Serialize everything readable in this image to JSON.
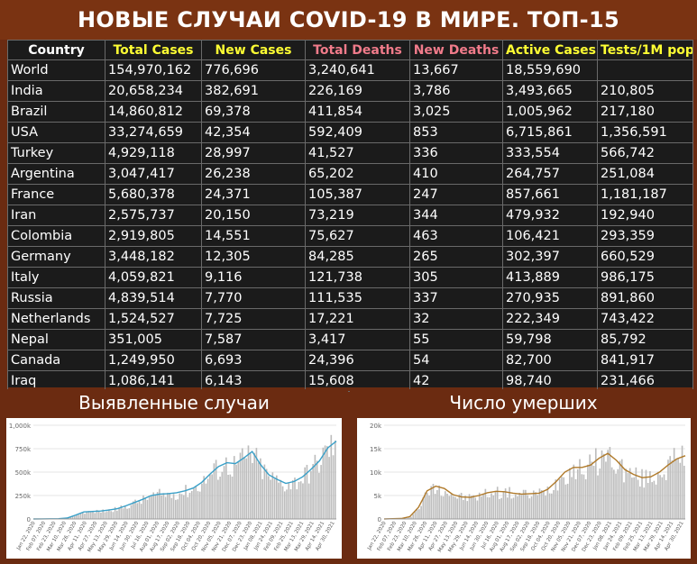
{
  "header": {
    "title": "НОВЫЕ СЛУЧАИ COVID-19 В МИРЕ. ТОП-15"
  },
  "table": {
    "columns": [
      "Country",
      "Total Cases",
      "New Cases",
      "Total Deaths",
      "New Deaths",
      "Active Cases",
      "Tests/1M pop"
    ],
    "rows": [
      [
        "World",
        "154,970,162",
        "776,696",
        "3,240,641",
        "13,667",
        "18,559,690",
        ""
      ],
      [
        "India",
        "20,658,234",
        "382,691",
        "226,169",
        "3,786",
        "3,493,665",
        "210,805"
      ],
      [
        "Brazil",
        "14,860,812",
        "69,378",
        "411,854",
        "3,025",
        "1,005,962",
        "217,180"
      ],
      [
        "USA",
        "33,274,659",
        "42,354",
        "592,409",
        "853",
        "6,715,861",
        "1,356,591"
      ],
      [
        "Turkey",
        "4,929,118",
        "28,997",
        "41,527",
        "336",
        "333,554",
        "566,742"
      ],
      [
        "Argentina",
        "3,047,417",
        "26,238",
        "65,202",
        "410",
        "264,757",
        "251,084"
      ],
      [
        "France",
        "5,680,378",
        "24,371",
        "105,387",
        "247",
        "857,661",
        "1,181,187"
      ],
      [
        "Iran",
        "2,575,737",
        "20,150",
        "73,219",
        "344",
        "479,932",
        "192,940"
      ],
      [
        "Colombia",
        "2,919,805",
        "14,551",
        "75,627",
        "463",
        "106,421",
        "293,359"
      ],
      [
        "Germany",
        "3,448,182",
        "12,305",
        "84,285",
        "265",
        "302,397",
        "660,529"
      ],
      [
        "Italy",
        "4,059,821",
        "9,116",
        "121,738",
        "305",
        "413,889",
        "986,175"
      ],
      [
        "Russia",
        "4,839,514",
        "7,770",
        "111,535",
        "337",
        "270,935",
        "891,860"
      ],
      [
        "Netherlands",
        "1,524,527",
        "7,725",
        "17,221",
        "32",
        "222,349",
        "743,422"
      ],
      [
        "Nepal",
        "351,005",
        "7,587",
        "3,417",
        "55",
        "59,798",
        "85,792"
      ],
      [
        "Canada",
        "1,249,950",
        "6,693",
        "24,396",
        "54",
        "82,700",
        "841,917"
      ],
      [
        "Iraq",
        "1,086,141",
        "6,143",
        "15,608",
        "42",
        "98,740",
        "231,466"
      ]
    ]
  },
  "colors": {
    "header_bg": "#7a3312",
    "table_bg": "#1b1b1b",
    "country_header": "#ffffff",
    "cases_header": "#ffff33",
    "deaths_header": "#f07b8a",
    "cases_line": "#3aa0c8",
    "deaths_line": "#b07a2a",
    "bars": "#bdbdbd"
  },
  "chart_data": [
    {
      "type": "bar",
      "title": "Выявленные случаи",
      "overlay": "line",
      "ylim": [
        0,
        1000000
      ],
      "yticks": [
        "0",
        "250k",
        "500k",
        "750k",
        "1,000k"
      ],
      "ytick_values": [
        0,
        250000,
        500000,
        750000,
        1000000
      ],
      "xticks": [
        "Jan 22, 2020",
        "Feb 07, 2020",
        "Feb 23, 2020",
        "Mar 10, 2020",
        "Mar 26, 2020",
        "Apr 11, 2020",
        "Apr 27, 2020",
        "May 13, 2020",
        "May 29, 2020",
        "Jun 14, 2020",
        "Jun 30, 2020",
        "Jul 16, 2020",
        "Aug 01, 2020",
        "Aug 17, 2020",
        "Sep 02, 2020",
        "Sep 18, 2020",
        "Oct 04, 2020",
        "Oct 20, 2020",
        "Nov 05, 2020",
        "Nov 21, 2020",
        "Dec 07, 2020",
        "Dec 23, 2020",
        "Jan 08, 2021",
        "Jan 24, 2021",
        "Feb 09, 2021",
        "Feb 25, 2021",
        "Mar 13, 2021",
        "Mar 29, 2021",
        "Apr 14, 2021",
        "Apr 30, 2021"
      ],
      "moving_average": [
        0,
        1000,
        2000,
        3000,
        10000,
        40000,
        75000,
        80000,
        85000,
        95000,
        110000,
        140000,
        175000,
        210000,
        250000,
        265000,
        270000,
        280000,
        300000,
        330000,
        390000,
        480000,
        560000,
        600000,
        590000,
        650000,
        720000,
        580000,
        470000,
        420000,
        380000,
        400000,
        450000,
        530000,
        620000,
        760000,
        830000
      ]
    },
    {
      "type": "bar",
      "title": "Число умерших",
      "overlay": "line",
      "ylim": [
        0,
        20000
      ],
      "yticks": [
        "0",
        "5k",
        "10k",
        "15k",
        "20k"
      ],
      "ytick_values": [
        0,
        5000,
        10000,
        15000,
        20000
      ],
      "xticks": [
        "Jan 22, 2020",
        "Feb 07, 2020",
        "Feb 23, 2020",
        "Mar 10, 2020",
        "Mar 26, 2020",
        "Apr 11, 2020",
        "Apr 27, 2020",
        "May 13, 2020",
        "May 29, 2020",
        "Jun 14, 2020",
        "Jun 30, 2020",
        "Jul 16, 2020",
        "Aug 01, 2020",
        "Aug 17, 2020",
        "Sep 02, 2020",
        "Sep 18, 2020",
        "Oct 04, 2020",
        "Oct 20, 2020",
        "Nov 05, 2020",
        "Nov 21, 2020",
        "Dec 07, 2020",
        "Dec 23, 2020",
        "Jan 08, 2021",
        "Jan 24, 2021",
        "Feb 09, 2021",
        "Feb 25, 2021",
        "Mar 13, 2021",
        "Mar 29, 2021",
        "Apr 14, 2021",
        "Apr 30, 2021"
      ],
      "moving_average": [
        0,
        50,
        100,
        500,
        2500,
        6000,
        7000,
        6500,
        5200,
        4700,
        4600,
        5000,
        5600,
        5900,
        5800,
        5500,
        5300,
        5400,
        5500,
        6300,
        8000,
        10000,
        11000,
        11000,
        11500,
        13000,
        14000,
        12500,
        10500,
        9500,
        8800,
        9000,
        10000,
        11500,
        12800,
        13500
      ]
    }
  ]
}
